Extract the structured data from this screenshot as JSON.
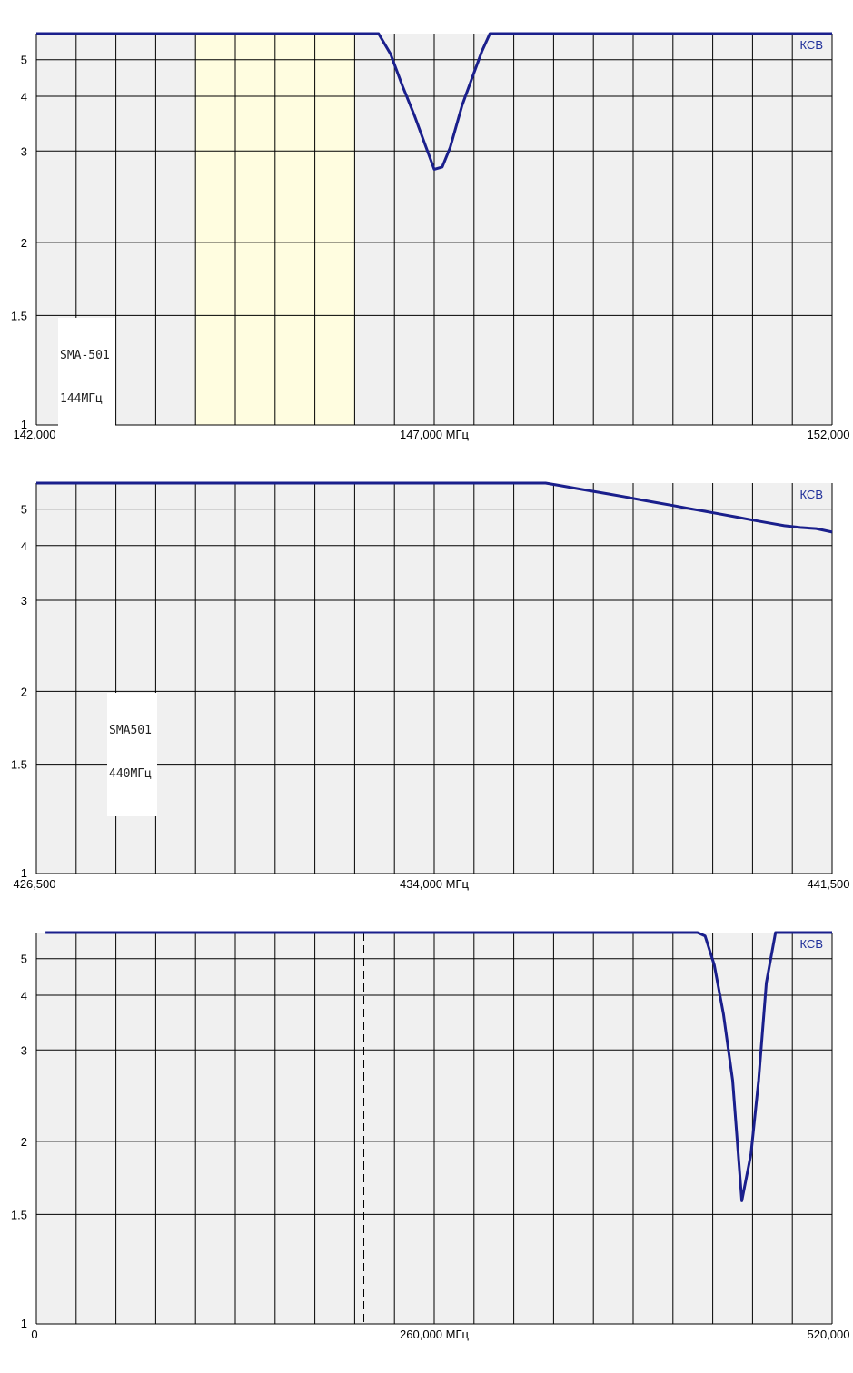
{
  "colors": {
    "plot_bg": "#f0f0f0",
    "grid": "#000000",
    "band": "#fffde0",
    "series": "#1a1f8c",
    "label": "#1f2f9a"
  },
  "chart_data": [
    {
      "type": "line",
      "y_axis_scale": "vswr",
      "ylim": [
        1,
        6
      ],
      "yticks": [
        "5",
        "4",
        "3",
        "2",
        "1.5",
        "1"
      ],
      "xlim": [
        142.0,
        152.0
      ],
      "xtick_labels": {
        "left": "142,000",
        "center": "147,000 МГц",
        "right": "152,000"
      },
      "legend": "КСВ",
      "annotation": [
        "SMA-501",
        "144МГц"
      ],
      "highlight_bands": [
        [
          144.0,
          146.0
        ]
      ],
      "grid": true,
      "series": [
        {
          "x": [
            142.0,
            146.3,
            146.45,
            146.6,
            146.75,
            146.9,
            147.0,
            147.1,
            147.2,
            147.35,
            147.5,
            147.6,
            147.7,
            152.0
          ],
          "y": [
            6.0,
            6.0,
            5.2,
            4.25,
            3.6,
            3.05,
            2.75,
            2.78,
            3.05,
            3.8,
            4.6,
            5.3,
            6.0,
            6.0
          ]
        }
      ]
    },
    {
      "type": "line",
      "y_axis_scale": "vswr",
      "ylim": [
        1,
        6
      ],
      "yticks": [
        "5",
        "4",
        "3",
        "2",
        "1.5",
        "1"
      ],
      "xlim": [
        426.5,
        441.5
      ],
      "xtick_labels": {
        "left": "426,500",
        "center": "434,000 МГц",
        "right": "441,500"
      },
      "legend": "КСВ",
      "annotation": [
        "SMA501",
        "440МГц"
      ],
      "highlight_bands": [],
      "grid": true,
      "series": [
        {
          "x": [
            426.5,
            436.1,
            436.4,
            436.7,
            437.0,
            437.3,
            437.6,
            437.9,
            438.2,
            438.5,
            438.8,
            439.1,
            439.4,
            439.7,
            440.0,
            440.3,
            440.6,
            440.9,
            441.2,
            441.5
          ],
          "y": [
            6.0,
            6.0,
            5.88,
            5.76,
            5.65,
            5.54,
            5.43,
            5.32,
            5.22,
            5.12,
            5.02,
            4.93,
            4.84,
            4.75,
            4.66,
            4.58,
            4.5,
            4.45,
            4.42,
            4.33
          ]
        }
      ]
    },
    {
      "type": "line",
      "y_axis_scale": "vswr",
      "ylim": [
        1,
        6
      ],
      "yticks": [
        "5",
        "4",
        "3",
        "2",
        "1.5",
        "1"
      ],
      "xlim": [
        0,
        520.0
      ],
      "xtick_labels": {
        "left": "0",
        "center": "260,000 МГц",
        "right": "520,000"
      },
      "legend": "КСВ",
      "annotation": [],
      "highlight_bands": [],
      "marker_lines": [
        214.0
      ],
      "grid": true,
      "series": [
        {
          "x": [
            6.0,
            432.0,
            437.0,
            443.0,
            449.0,
            455.0,
            461.0,
            467.0,
            472.0,
            477.0,
            483.0,
            520.0
          ],
          "y": [
            6.0,
            6.0,
            5.85,
            4.8,
            3.6,
            2.6,
            1.58,
            1.9,
            2.6,
            4.3,
            6.0,
            6.0
          ]
        }
      ]
    }
  ]
}
